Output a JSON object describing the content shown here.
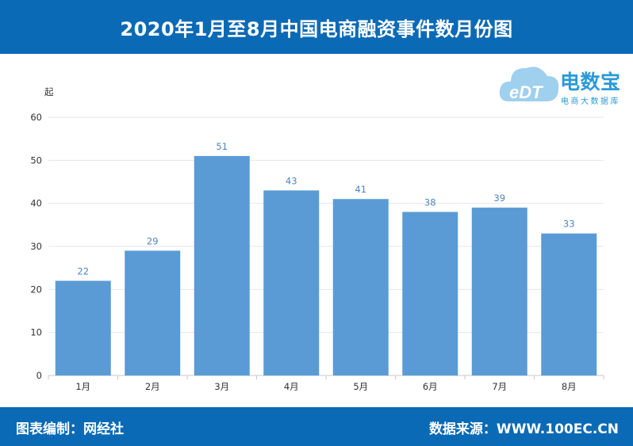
{
  "header": {
    "title": "2020年1月至8月中国电商融资事件数月份图"
  },
  "logo": {
    "name": "电数宝",
    "subtitle": "电商大数据库",
    "mark": "eDT",
    "icon": "cloud-logo-icon"
  },
  "footer": {
    "left": "图表编制：网经社",
    "right": "数据来源：WWW.100EC.CN"
  },
  "colors": {
    "header_bg": "#0b6ab5",
    "bar": "#5b9bd5",
    "data_label": "#4a86c3",
    "logo": "#2a9ad8"
  },
  "chart_data": {
    "type": "bar",
    "unit_label": "起",
    "categories": [
      "1月",
      "2月",
      "3月",
      "4月",
      "5月",
      "6月",
      "7月",
      "8月"
    ],
    "values": [
      22,
      29,
      51,
      43,
      41,
      38,
      39,
      33
    ],
    "ylim": [
      0,
      60
    ],
    "yticks": [
      0,
      10,
      20,
      30,
      40,
      50,
      60
    ],
    "grid": true,
    "data_labels": true
  }
}
